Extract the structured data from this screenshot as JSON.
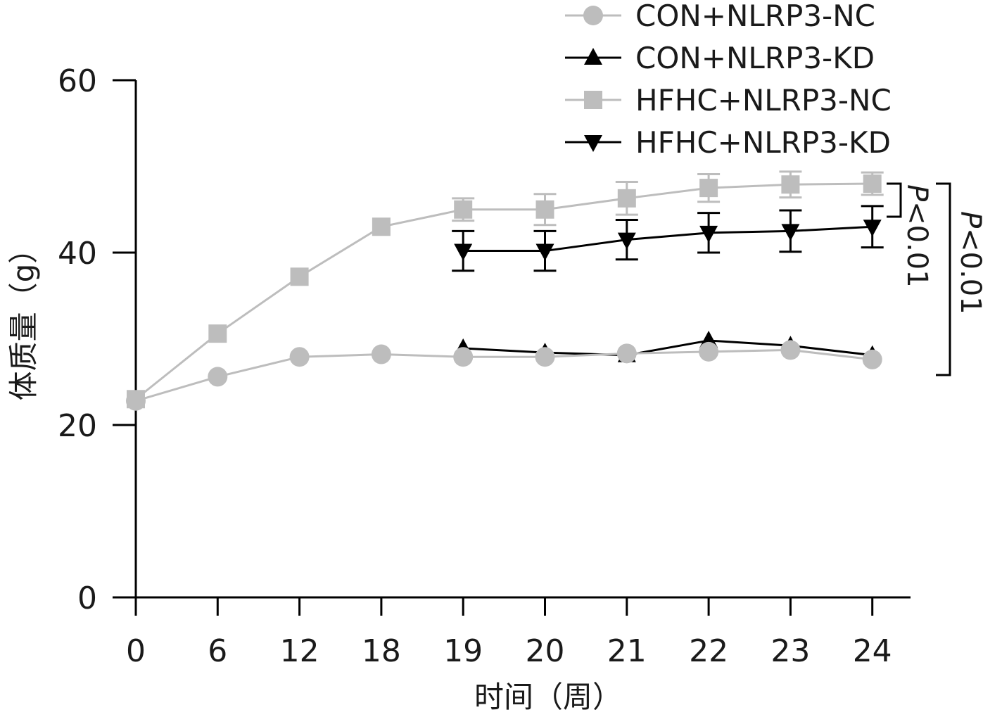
{
  "chart_data": {
    "type": "line",
    "xlabel": "时间（周）",
    "ylabel": "体质量（g）",
    "categories": [
      "0",
      "6",
      "12",
      "18",
      "19",
      "20",
      "21",
      "22",
      "23",
      "24"
    ],
    "yticks": [
      "0",
      "20",
      "40",
      "60"
    ],
    "ylim": [
      0,
      60
    ],
    "grid": false,
    "legend_position": "top-right",
    "series": [
      {
        "name": "CON+NLRP3-NC",
        "color": "#bdbdbd",
        "marker": "circle",
        "x": [
          "0",
          "6",
          "12",
          "18",
          "19",
          "20",
          "21",
          "22",
          "23",
          "24"
        ],
        "values": [
          22.8,
          25.6,
          27.9,
          28.2,
          27.9,
          27.9,
          28.3,
          28.5,
          28.7,
          27.6
        ],
        "errors": [
          0,
          0,
          0,
          0,
          0,
          0,
          0,
          0,
          0,
          0
        ]
      },
      {
        "name": "CON+NLRP3-KD",
        "color": "#000000",
        "marker": "triangle-up",
        "x": [
          "19",
          "20",
          "21",
          "22",
          "23",
          "24"
        ],
        "values": [
          28.9,
          28.4,
          28.1,
          29.8,
          29.2,
          28.1
        ],
        "errors": [
          0,
          0,
          0,
          0,
          0,
          0
        ]
      },
      {
        "name": "HFHC+NLRP3-NC",
        "color": "#bdbdbd",
        "marker": "square",
        "x": [
          "0",
          "6",
          "12",
          "18",
          "19",
          "20",
          "21",
          "22",
          "23",
          "24"
        ],
        "values": [
          23.0,
          30.6,
          37.2,
          43.0,
          45.0,
          45.0,
          46.3,
          47.5,
          47.9,
          48.0
        ],
        "errors": [
          0,
          0,
          0,
          0,
          1.3,
          1.8,
          1.9,
          1.6,
          1.5,
          1.3
        ]
      },
      {
        "name": "HFHC+NLRP3-KD",
        "color": "#000000",
        "marker": "triangle-down",
        "x": [
          "19",
          "20",
          "21",
          "22",
          "23",
          "24"
        ],
        "values": [
          40.2,
          40.2,
          41.5,
          42.3,
          42.5,
          43.0
        ],
        "errors": [
          2.3,
          2.3,
          2.3,
          2.3,
          2.4,
          2.4
        ]
      }
    ],
    "annotations": [
      {
        "label_prefix": "P",
        "label_suffix": "<0.01",
        "from_series": "HFHC+NLRP3-NC",
        "to_series": "HFHC+NLRP3-KD"
      },
      {
        "label_prefix": "P",
        "label_suffix": "<0.01",
        "from_series": "HFHC+NLRP3-NC",
        "to_series": "CON+NLRP3-NC"
      }
    ]
  }
}
